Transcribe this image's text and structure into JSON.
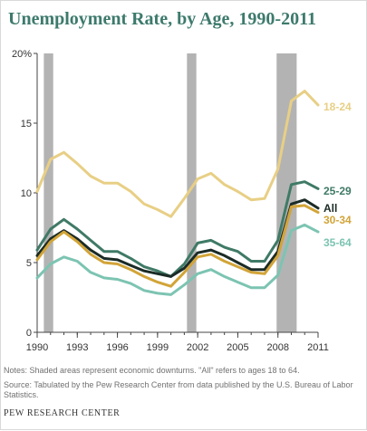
{
  "chart_data": {
    "type": "line",
    "title": "Unemployment Rate, by Age, 1990-2011",
    "xlabel": "",
    "ylabel": "",
    "x": [
      1990,
      1991,
      1992,
      1993,
      1994,
      1995,
      1996,
      1997,
      1998,
      1999,
      2000,
      2001,
      2002,
      2003,
      2004,
      2005,
      2006,
      2007,
      2008,
      2009,
      2010,
      2011
    ],
    "xlim": [
      1990,
      2011
    ],
    "ylim": [
      0,
      20
    ],
    "x_ticks": [
      1990,
      1993,
      1996,
      1999,
      2002,
      2005,
      2008,
      2011
    ],
    "y_ticks": [
      0,
      5,
      10,
      15,
      20
    ],
    "y_tick_labels": [
      "0",
      "5",
      "10",
      "15",
      "20%"
    ],
    "grid": false,
    "shaded_periods": [
      {
        "start": 1990.5,
        "end": 1991.2
      },
      {
        "start": 2001.2,
        "end": 2001.9
      },
      {
        "start": 2007.9,
        "end": 2009.4
      }
    ],
    "series": [
      {
        "name": "18-24",
        "color": "#e8cf85",
        "label_weight": "bold",
        "values": [
          10.1,
          12.4,
          12.9,
          12.1,
          11.2,
          10.7,
          10.7,
          10.1,
          9.2,
          8.8,
          8.3,
          9.6,
          11.0,
          11.4,
          10.6,
          10.1,
          9.5,
          9.6,
          11.7,
          16.6,
          17.3,
          16.3
        ]
      },
      {
        "name": "25-29",
        "color": "#3f7a66",
        "label_weight": "bold",
        "values": [
          5.9,
          7.4,
          8.1,
          7.4,
          6.6,
          5.8,
          5.8,
          5.3,
          4.7,
          4.4,
          4.0,
          4.9,
          6.4,
          6.6,
          6.1,
          5.8,
          5.1,
          5.1,
          6.6,
          10.6,
          10.8,
          10.3
        ]
      },
      {
        "name": "All",
        "color": "#1b2b26",
        "label_weight": "bold",
        "values": [
          5.5,
          6.7,
          7.3,
          6.7,
          5.9,
          5.3,
          5.2,
          4.8,
          4.4,
          4.2,
          4.0,
          4.6,
          5.7,
          5.9,
          5.5,
          5.0,
          4.5,
          4.5,
          5.8,
          9.2,
          9.5,
          8.9
        ]
      },
      {
        "name": "30-34",
        "color": "#d2a438",
        "label_weight": "bold",
        "values": [
          5.2,
          6.5,
          7.2,
          6.5,
          5.6,
          5.0,
          4.9,
          4.5,
          4.0,
          3.6,
          3.3,
          4.3,
          5.4,
          5.6,
          5.1,
          4.7,
          4.3,
          4.2,
          5.5,
          9.0,
          9.1,
          8.6
        ]
      },
      {
        "name": "35-64",
        "color": "#7cc4b2",
        "label_weight": "bold",
        "values": [
          3.9,
          4.9,
          5.4,
          5.1,
          4.3,
          3.9,
          3.8,
          3.5,
          3.0,
          2.8,
          2.7,
          3.4,
          4.2,
          4.5,
          4.0,
          3.6,
          3.2,
          3.2,
          4.1,
          7.3,
          7.7,
          7.2
        ]
      }
    ]
  },
  "notes": {
    "shading": "Notes: Shaded areas represent economic downturns. \"All\" refers to ages 18 to 64.",
    "source": "Source: Tabulated by the Pew Research Center from data published by the U.S. Bureau of Labor Statistics."
  },
  "credit": "PEW RESEARCH CENTER",
  "colors": {
    "title": "#3d7a6c",
    "recession_shade": "#b3b3b3",
    "axis": "#444444",
    "tick_label": "#333333"
  }
}
